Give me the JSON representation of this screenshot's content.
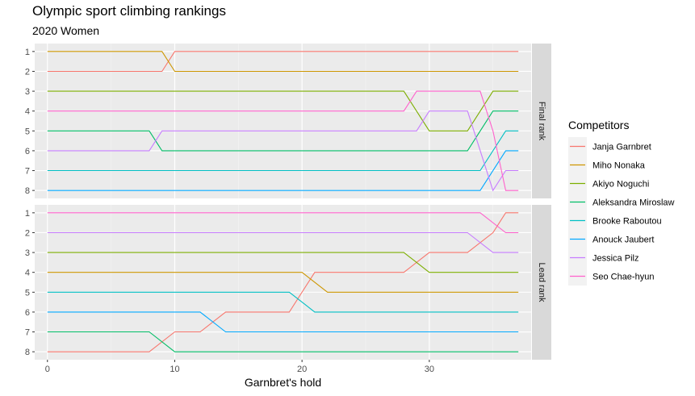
{
  "chart_data": {
    "type": "line",
    "title": "Olympic sport climbing rankings",
    "subtitle": "2020 Women",
    "xlabel": "Garnbret's hold",
    "ylabel": "",
    "xlim": [
      -1,
      38
    ],
    "x_ticks": [
      0,
      10,
      20,
      30
    ],
    "y_ticks": [
      1,
      2,
      3,
      4,
      5,
      6,
      7,
      8
    ],
    "y_reversed": true,
    "grid": true,
    "legend_title": "Competitors",
    "legend_position": "right",
    "panels": [
      {
        "strip": "Final rank",
        "series": [
          {
            "name": "Janja Garnbret",
            "color": "#F8766D",
            "points": [
              [
                0,
                2
              ],
              [
                9,
                2
              ],
              [
                10,
                1
              ],
              [
                37,
                1
              ]
            ]
          },
          {
            "name": "Miho Nonaka",
            "color": "#CD9600",
            "points": [
              [
                0,
                1
              ],
              [
                9,
                1
              ],
              [
                10,
                2
              ],
              [
                37,
                2
              ]
            ]
          },
          {
            "name": "Akiyo Noguchi",
            "color": "#7CAE00",
            "points": [
              [
                0,
                3
              ],
              [
                28,
                3
              ],
              [
                30,
                5
              ],
              [
                33,
                5
              ],
              [
                35,
                3
              ],
              [
                37,
                3
              ]
            ]
          },
          {
            "name": "Aleksandra Miroslaw",
            "color": "#00BE67",
            "points": [
              [
                0,
                5
              ],
              [
                8,
                5
              ],
              [
                9,
                6
              ],
              [
                33,
                6
              ],
              [
                35,
                4
              ],
              [
                37,
                4
              ]
            ]
          },
          {
            "name": "Brooke Raboutou",
            "color": "#00BFC4",
            "points": [
              [
                0,
                7
              ],
              [
                34,
                7
              ],
              [
                36,
                5
              ],
              [
                37,
                5
              ]
            ]
          },
          {
            "name": "Anouck Jaubert",
            "color": "#00A9FF",
            "points": [
              [
                0,
                8
              ],
              [
                34,
                8
              ],
              [
                36,
                6
              ],
              [
                37,
                6
              ]
            ]
          },
          {
            "name": "Jessica Pilz",
            "color": "#C77CFF",
            "points": [
              [
                0,
                6
              ],
              [
                8,
                6
              ],
              [
                9,
                5
              ],
              [
                29,
                5
              ],
              [
                30,
                4
              ],
              [
                33,
                4
              ],
              [
                35,
                8
              ],
              [
                36,
                7
              ],
              [
                37,
                7
              ]
            ]
          },
          {
            "name": "Seo Chae-hyun",
            "color": "#FF61CC",
            "points": [
              [
                0,
                4
              ],
              [
                28,
                4
              ],
              [
                29,
                3
              ],
              [
                34,
                3
              ],
              [
                35,
                5
              ],
              [
                36,
                8
              ],
              [
                37,
                8
              ]
            ]
          }
        ]
      },
      {
        "strip": "Lead rank",
        "series": [
          {
            "name": "Janja Garnbret",
            "color": "#F8766D",
            "points": [
              [
                0,
                8
              ],
              [
                8,
                8
              ],
              [
                10,
                7
              ],
              [
                12,
                7
              ],
              [
                14,
                6
              ],
              [
                19,
                6
              ],
              [
                21,
                4
              ],
              [
                28,
                4
              ],
              [
                30,
                3
              ],
              [
                33,
                3
              ],
              [
                35,
                2
              ],
              [
                36,
                1
              ],
              [
                37,
                1
              ]
            ]
          },
          {
            "name": "Miho Nonaka",
            "color": "#CD9600",
            "points": [
              [
                0,
                4
              ],
              [
                20,
                4
              ],
              [
                22,
                5
              ],
              [
                37,
                5
              ]
            ]
          },
          {
            "name": "Akiyo Noguchi",
            "color": "#7CAE00",
            "points": [
              [
                0,
                3
              ],
              [
                28,
                3
              ],
              [
                30,
                4
              ],
              [
                37,
                4
              ]
            ]
          },
          {
            "name": "Aleksandra Miroslaw",
            "color": "#00BE67",
            "points": [
              [
                0,
                7
              ],
              [
                8,
                7
              ],
              [
                10,
                8
              ],
              [
                37,
                8
              ]
            ]
          },
          {
            "name": "Brooke Raboutou",
            "color": "#00BFC4",
            "points": [
              [
                0,
                5
              ],
              [
                19,
                5
              ],
              [
                21,
                6
              ],
              [
                37,
                6
              ]
            ]
          },
          {
            "name": "Anouck Jaubert",
            "color": "#00A9FF",
            "points": [
              [
                0,
                6
              ],
              [
                12,
                6
              ],
              [
                14,
                7
              ],
              [
                37,
                7
              ]
            ]
          },
          {
            "name": "Jessica Pilz",
            "color": "#C77CFF",
            "points": [
              [
                0,
                2
              ],
              [
                33,
                2
              ],
              [
                35,
                3
              ],
              [
                37,
                3
              ]
            ]
          },
          {
            "name": "Seo Chae-hyun",
            "color": "#FF61CC",
            "points": [
              [
                0,
                1
              ],
              [
                34,
                1
              ],
              [
                36,
                2
              ],
              [
                37,
                2
              ]
            ]
          }
        ]
      }
    ],
    "legend": [
      {
        "name": "Janja Garnbret",
        "color": "#F8766D"
      },
      {
        "name": "Miho Nonaka",
        "color": "#CD9600"
      },
      {
        "name": "Akiyo Noguchi",
        "color": "#7CAE00"
      },
      {
        "name": "Aleksandra Miroslaw",
        "color": "#00BE67"
      },
      {
        "name": "Brooke Raboutou",
        "color": "#00BFC4"
      },
      {
        "name": "Anouck Jaubert",
        "color": "#00A9FF"
      },
      {
        "name": "Jessica Pilz",
        "color": "#C77CFF"
      },
      {
        "name": "Seo Chae-hyun",
        "color": "#FF61CC"
      }
    ]
  }
}
